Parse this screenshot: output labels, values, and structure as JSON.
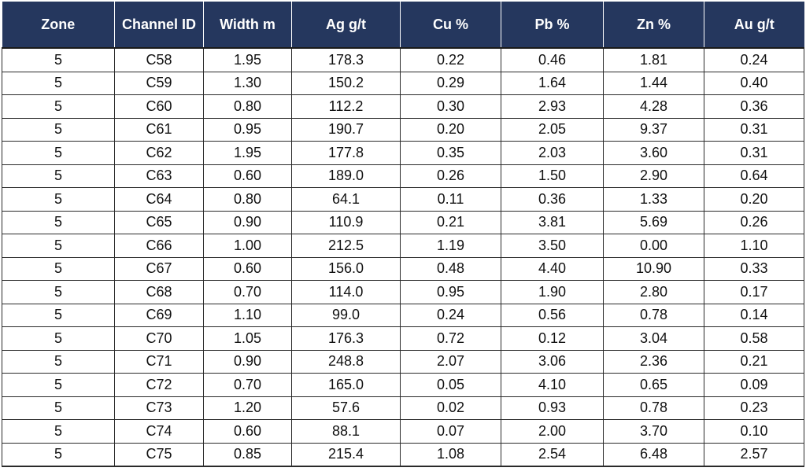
{
  "table": {
    "columns": [
      "Zone",
      "Channel ID",
      "Width m",
      "Ag g/t",
      "Cu %",
      "Pb %",
      "Zn %",
      "Au g/t"
    ],
    "rows": [
      [
        "5",
        "C58",
        "1.95",
        "178.3",
        "0.22",
        "0.46",
        "1.81",
        "0.24"
      ],
      [
        "5",
        "C59",
        "1.30",
        "150.2",
        "0.29",
        "1.64",
        "1.44",
        "0.40"
      ],
      [
        "5",
        "C60",
        "0.80",
        "112.2",
        "0.30",
        "2.93",
        "4.28",
        "0.36"
      ],
      [
        "5",
        "C61",
        "0.95",
        "190.7",
        "0.20",
        "2.05",
        "9.37",
        "0.31"
      ],
      [
        "5",
        "C62",
        "1.95",
        "177.8",
        "0.35",
        "2.03",
        "3.60",
        "0.31"
      ],
      [
        "5",
        "C63",
        "0.60",
        "189.0",
        "0.26",
        "1.50",
        "2.90",
        "0.64"
      ],
      [
        "5",
        "C64",
        "0.80",
        "64.1",
        "0.11",
        "0.36",
        "1.33",
        "0.20"
      ],
      [
        "5",
        "C65",
        "0.90",
        "110.9",
        "0.21",
        "3.81",
        "5.69",
        "0.26"
      ],
      [
        "5",
        "C66",
        "1.00",
        "212.5",
        "1.19",
        "3.50",
        "0.00",
        "1.10"
      ],
      [
        "5",
        "C67",
        "0.60",
        "156.0",
        "0.48",
        "4.40",
        "10.90",
        "0.33"
      ],
      [
        "5",
        "C68",
        "0.70",
        "114.0",
        "0.95",
        "1.90",
        "2.80",
        "0.17"
      ],
      [
        "5",
        "C69",
        "1.10",
        "99.0",
        "0.24",
        "0.56",
        "0.78",
        "0.14"
      ],
      [
        "5",
        "C70",
        "1.05",
        "176.3",
        "0.72",
        "0.12",
        "3.04",
        "0.58"
      ],
      [
        "5",
        "C71",
        "0.90",
        "248.8",
        "2.07",
        "3.06",
        "2.36",
        "0.21"
      ],
      [
        "5",
        "C72",
        "0.70",
        "165.0",
        "0.05",
        "4.10",
        "0.65",
        "0.09"
      ],
      [
        "5",
        "C73",
        "1.20",
        "57.6",
        "0.02",
        "0.93",
        "0.78",
        "0.23"
      ],
      [
        "5",
        "C74",
        "0.60",
        "88.1",
        "0.07",
        "2.00",
        "3.70",
        "0.10"
      ],
      [
        "5",
        "C75",
        "0.85",
        "215.4",
        "1.08",
        "2.54",
        "6.48",
        "2.57"
      ]
    ]
  },
  "colors": {
    "header_bg": "#25375e",
    "header_text": "#ffffff",
    "grid": "#2a2a2a"
  }
}
